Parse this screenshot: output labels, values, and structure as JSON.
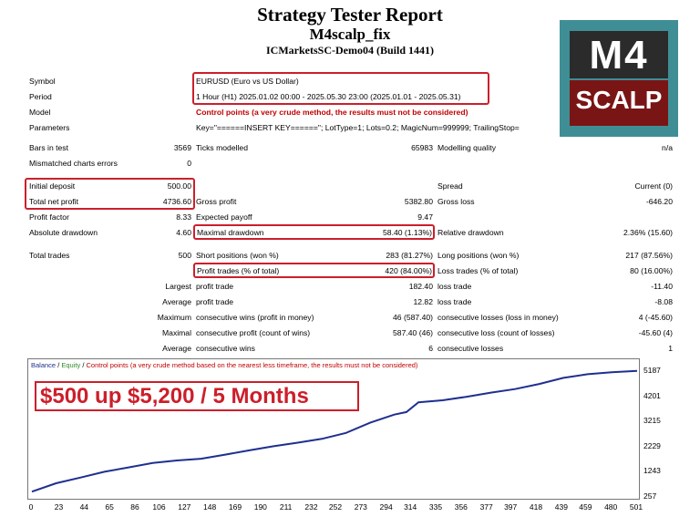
{
  "header": {
    "title": "Strategy Tester Report",
    "expert": "M4scalp_fix",
    "server": "ICMarketsSC-Demo04 (Build 1441)"
  },
  "logo": {
    "line1": "M4",
    "line2": "SCALP"
  },
  "info": {
    "symbol_label": "Symbol",
    "symbol": "EURUSD (Euro vs US Dollar)",
    "period_label": "Period",
    "period": "1 Hour (H1) 2025.01.02 00:00 - 2025.05.30 23:00 (2025.01.01 - 2025.05.31)",
    "model_label": "Model",
    "model": "Control points (a very crude method, the results must not be considered)",
    "parameters_label": "Parameters",
    "parameters": "Key=\"======INSERT KEY======\"; LotType=1; Lots=0.2; MagicNum=999999; TrailingStop="
  },
  "stats": {
    "bars_label": "Bars in test",
    "bars": "3569",
    "ticks_label": "Ticks modelled",
    "ticks": "65983",
    "quality_label": "Modelling quality",
    "quality": "n/a",
    "mismatched_label": "Mismatched charts errors",
    "mismatched": "0",
    "deposit_label": "Initial deposit",
    "deposit": "500.00",
    "spread_label": "Spread",
    "spread": "Current (0)",
    "net_label": "Total net profit",
    "net": "4736.60",
    "gross_profit_label": "Gross profit",
    "gross_profit": "5382.80",
    "gross_loss_label": "Gross loss",
    "gross_loss": "-646.20",
    "pf_label": "Profit factor",
    "pf": "8.33",
    "payoff_label": "Expected payoff",
    "payoff": "9.47",
    "abs_dd_label": "Absolute drawdown",
    "abs_dd": "4.60",
    "max_dd_label": "Maximal drawdown",
    "max_dd": "58.40 (1.13%)",
    "rel_dd_label": "Relative drawdown",
    "rel_dd": "2.36% (15.60)",
    "trades_label": "Total trades",
    "trades": "500",
    "short_label": "Short positions (won %)",
    "short": "283 (81.27%)",
    "long_label": "Long positions (won %)",
    "long": "217 (87.56%)",
    "pt_label": "Profit trades (% of total)",
    "pt": "420 (84.00%)",
    "lt_label": "Loss trades (% of total)",
    "lt": "80 (16.00%)",
    "largest_label": "Largest",
    "largest_pt_label": "profit trade",
    "largest_pt": "182.40",
    "largest_lt_label": "loss trade",
    "largest_lt": "-11.40",
    "average_label": "Average",
    "average_pt_label": "profit trade",
    "average_pt": "12.82",
    "average_lt_label": "loss trade",
    "average_lt": "-8.08",
    "maximum_label": "Maximum",
    "max_cw_label": "consecutive wins (profit in money)",
    "max_cw": "46 (587.40)",
    "max_cl_label": "consecutive losses (loss in money)",
    "max_cl": "4 (-45.60)",
    "maximal_label": "Maximal",
    "mxl_cp_label": "consecutive profit (count of wins)",
    "mxl_cp": "587.40 (46)",
    "mxl_cl_label": "consecutive loss (count of losses)",
    "mxl_cl": "-45.60 (4)",
    "avg2_label": "Average",
    "avg_cw_label": "consecutive wins",
    "avg_cw": "6",
    "avg_cl_label": "consecutive losses",
    "avg_cl": "1"
  },
  "chart": {
    "legend_balance": "Balance",
    "legend_sep1": " / ",
    "legend_equity": "Equity",
    "legend_sep2": " / ",
    "legend_rest": "Control points (a very crude method based on the nearest less timeframe, the results must not be considered)",
    "banner": "$500 up $5,200 / 5 Months",
    "balance_color": "#1f2f8f",
    "equity_color": "#2e8b2e"
  },
  "chart_data": {
    "type": "line",
    "yticks": [
      5187,
      4201,
      3215,
      2229,
      1243,
      257
    ],
    "xticks": [
      0,
      23,
      44,
      65,
      86,
      106,
      127,
      148,
      169,
      190,
      211,
      232,
      252,
      273,
      294,
      314,
      335,
      356,
      377,
      397,
      418,
      439,
      459,
      480,
      501
    ],
    "ylim": [
      257,
      5187
    ],
    "xlim": [
      0,
      501
    ],
    "series": [
      {
        "name": "Balance",
        "x": [
          0,
          20,
          40,
          60,
          80,
          100,
          120,
          140,
          160,
          180,
          200,
          220,
          240,
          260,
          280,
          300,
          310,
          320,
          340,
          360,
          380,
          400,
          420,
          440,
          460,
          480,
          501
        ],
        "y": [
          500,
          830,
          1050,
          1280,
          1450,
          1620,
          1720,
          1790,
          1950,
          2120,
          2280,
          2420,
          2570,
          2800,
          3200,
          3520,
          3620,
          4000,
          4080,
          4220,
          4380,
          4520,
          4720,
          4960,
          5100,
          5180,
          5230
        ]
      }
    ]
  }
}
